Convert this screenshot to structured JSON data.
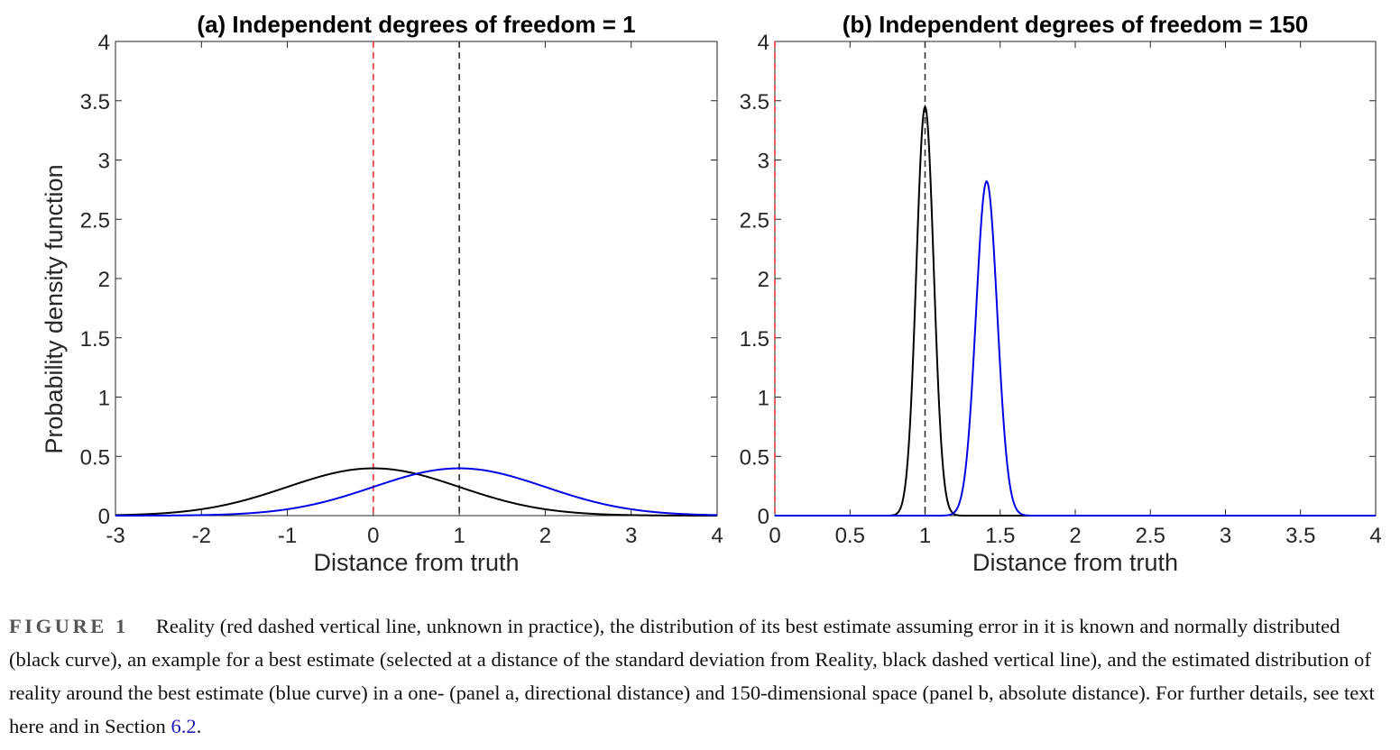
{
  "chart_data": [
    {
      "type": "line",
      "title": "(a) Independent degrees of freedom = 1",
      "xlabel": "Distance from truth",
      "ylabel": "Probability density function",
      "xlim": [
        -3,
        4
      ],
      "ylim": [
        0,
        4
      ],
      "xticks": [
        "-3",
        "-2",
        "-1",
        "0",
        "1",
        "2",
        "3",
        "4"
      ],
      "yticks": [
        "0",
        "0.5",
        "1",
        "1.5",
        "2",
        "2.5",
        "3",
        "3.5",
        "4"
      ],
      "series": [
        {
          "color": "#000000",
          "kind": "normal",
          "mean": 0,
          "sd": 1,
          "peak": 0.399
        },
        {
          "color": "#0000e6",
          "kind": "normal",
          "mean": 1,
          "sd": 1,
          "peak": 0.399
        }
      ],
      "vlines": [
        {
          "x": 0,
          "color": "#ee3333",
          "style": "dashed"
        },
        {
          "x": 1,
          "color": "#333333",
          "style": "dashed"
        }
      ]
    },
    {
      "type": "line",
      "title": "(b) Independent degrees of freedom = 150",
      "xlabel": "Distance from truth",
      "ylabel": "",
      "xlim": [
        0,
        4
      ],
      "ylim": [
        0,
        4
      ],
      "xticks": [
        "0",
        "0.5",
        "1",
        "1.5",
        "2",
        "2.5",
        "3",
        "3.5",
        "4"
      ],
      "yticks": [
        "0",
        "0.5",
        "1",
        "1.5",
        "2",
        "2.5",
        "3",
        "3.5",
        "4"
      ],
      "series": [
        {
          "color": "#000000",
          "kind": "normal",
          "mean": 1.0,
          "sd": 0.0578,
          "peak": 3.45
        },
        {
          "color": "#0000e6",
          "kind": "normal",
          "mean": 1.41,
          "sd": 0.0708,
          "peak": 2.82
        }
      ],
      "vlines": [
        {
          "x": 0,
          "color": "#ee3333",
          "style": "dashed"
        },
        {
          "x": 1,
          "color": "#333333",
          "style": "dashed"
        }
      ]
    }
  ],
  "caption": {
    "label": "FIGURE 1",
    "text": "Reality (red dashed vertical line, unknown in practice), the distribution of its best estimate assuming error in it is known and normally distributed (black curve), an example for a best estimate (selected at a distance of the standard deviation from Reality, black dashed vertical line), and the estimated distribution of reality around the best estimate (blue curve) in a one- (panel a, directional distance) and 150-dimensional space (panel b, absolute distance). For further details, see text here and in Section",
    "section_ref": "6.2",
    "end": "."
  }
}
